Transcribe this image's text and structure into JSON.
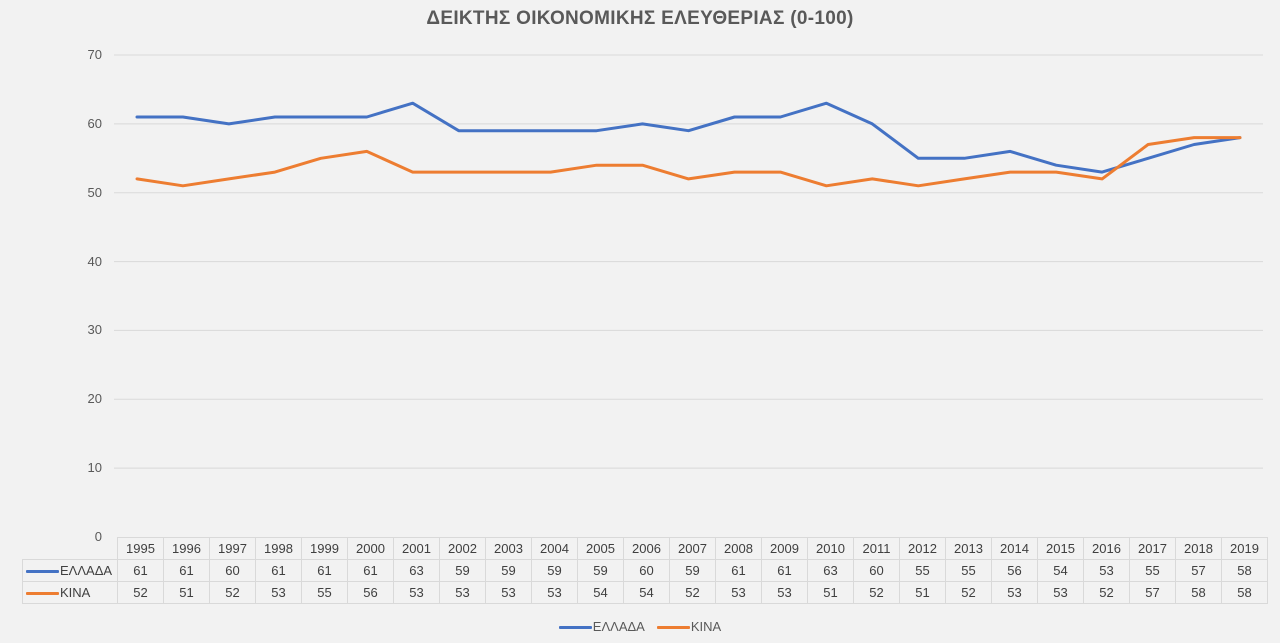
{
  "chart_data": {
    "type": "line",
    "title": "ΔΕΙΚΤΗΣ ΟΙΚΟΝΟΜΙΚΗΣ ΕΛΕΥΘΕΡΙΑΣ (0-100)",
    "xlabel": "",
    "ylabel": "",
    "ylim": [
      0,
      70
    ],
    "yticks": [
      0,
      10,
      20,
      30,
      40,
      50,
      60,
      70
    ],
    "grid": true,
    "legend_position": "bottom",
    "data_table": true,
    "categories": [
      "1995",
      "1996",
      "1997",
      "1998",
      "1999",
      "2000",
      "2001",
      "2002",
      "2003",
      "2004",
      "2005",
      "2006",
      "2007",
      "2008",
      "2009",
      "2010",
      "2011",
      "2012",
      "2013",
      "2014",
      "2015",
      "2016",
      "2017",
      "2018",
      "2019"
    ],
    "series": [
      {
        "name": "ΕΛΛΑΔΑ",
        "color": "#4472c4",
        "values": [
          61,
          61,
          60,
          61,
          61,
          61,
          63,
          59,
          59,
          59,
          59,
          60,
          59,
          61,
          61,
          63,
          60,
          55,
          55,
          56,
          54,
          53,
          55,
          57,
          58
        ]
      },
      {
        "name": "ΚΙΝΑ",
        "color": "#ed7d31",
        "values": [
          52,
          51,
          52,
          53,
          55,
          56,
          53,
          53,
          53,
          53,
          54,
          54,
          52,
          53,
          53,
          51,
          52,
          51,
          52,
          53,
          53,
          52,
          57,
          58,
          58
        ]
      }
    ]
  },
  "colors": {
    "background": "#f2f2f2",
    "gridline": "#d9d9d9",
    "text": "#595959"
  }
}
